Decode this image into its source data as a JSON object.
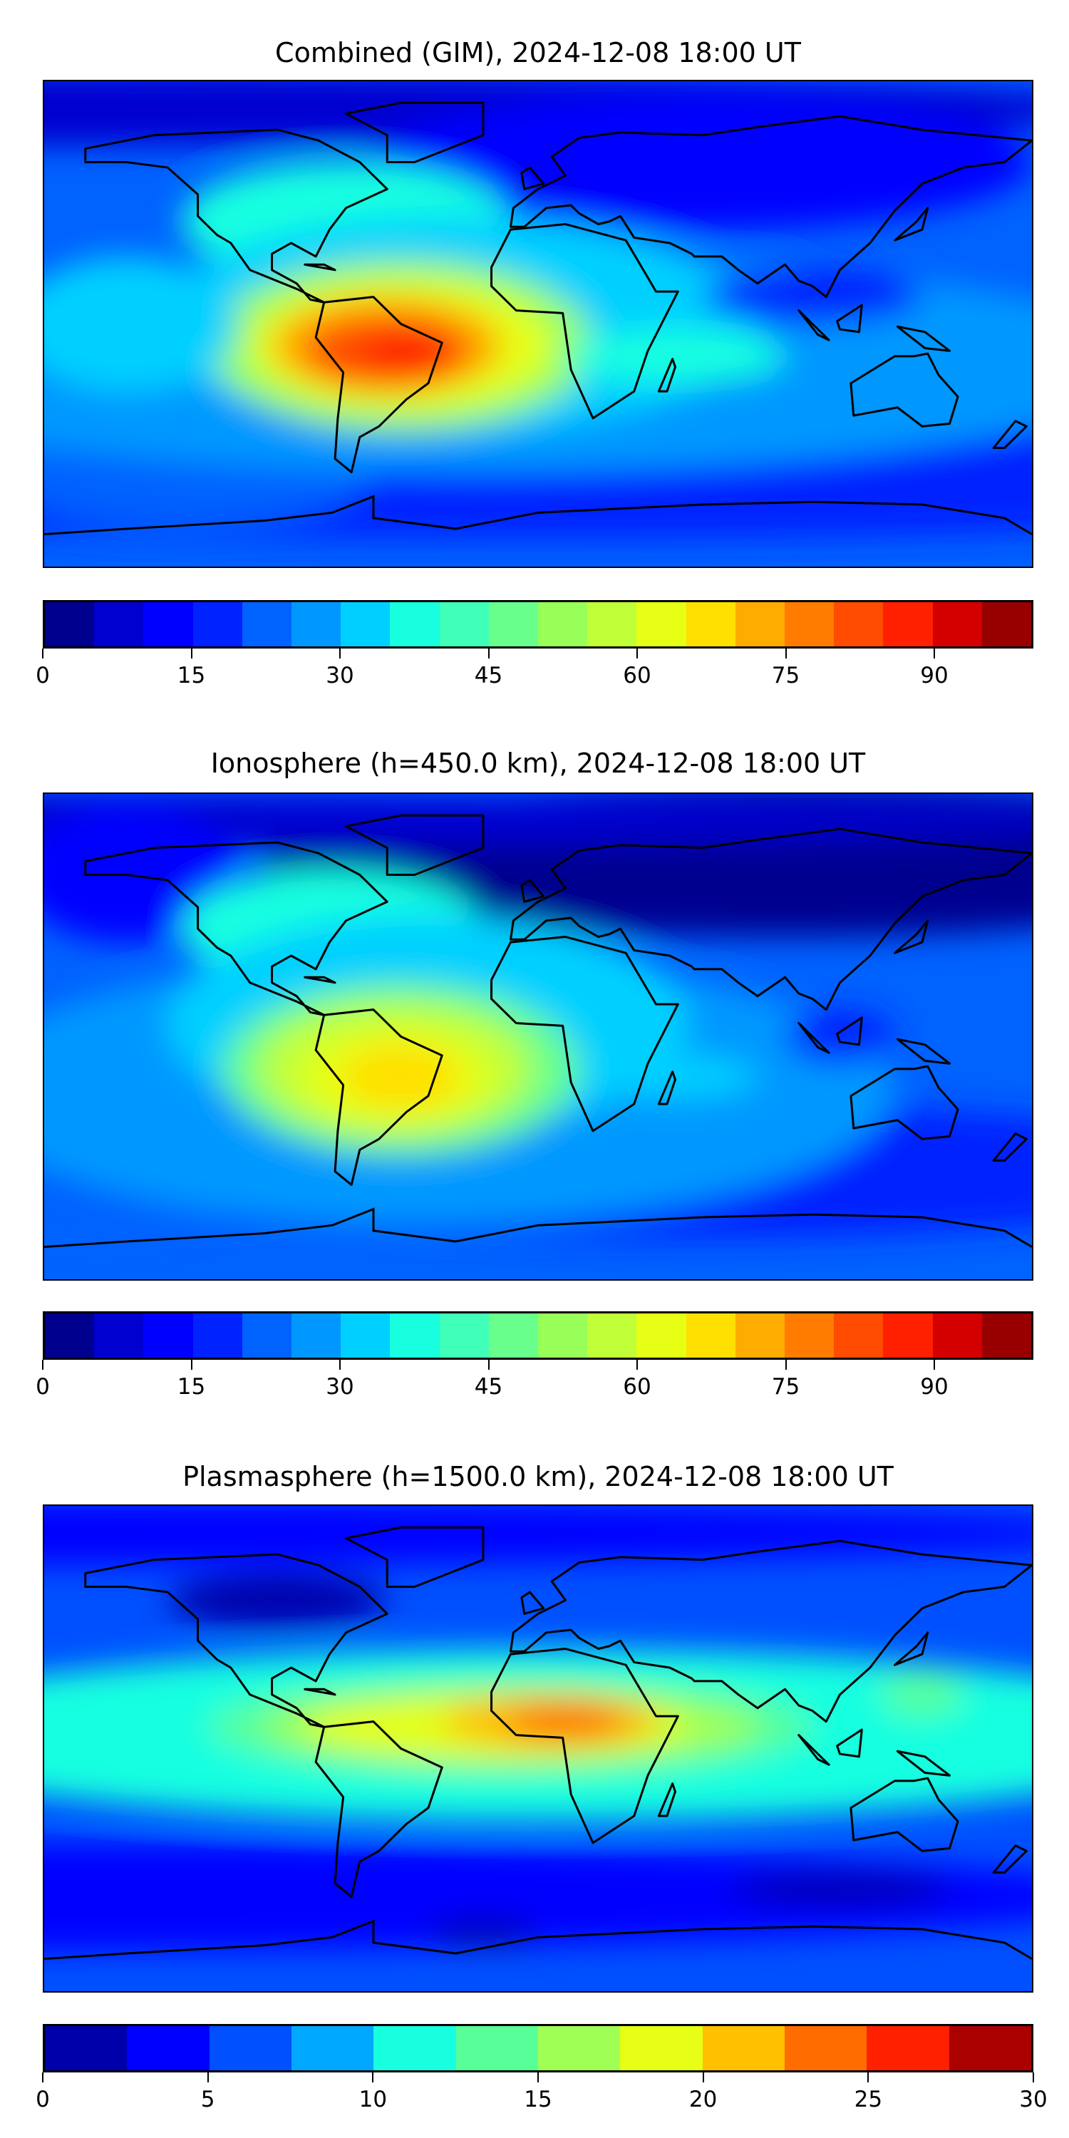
{
  "panels": [
    {
      "title": "Combined (GIM), 2024-12-08 18:00 UT",
      "colorbar": {
        "min": 0,
        "max": 100,
        "step": 5,
        "ticks": [
          "0",
          "15",
          "30",
          "45",
          "60",
          "75",
          "90"
        ],
        "tick_values": [
          0,
          15,
          30,
          45,
          60,
          75,
          90
        ],
        "colors": [
          "#00008f",
          "#0000d0",
          "#0000ff",
          "#0022ff",
          "#0062ff",
          "#0098ff",
          "#00d0ff",
          "#18ffe0",
          "#40ffb8",
          "#68ff8c",
          "#98ff58",
          "#c0ff38",
          "#e6ff14",
          "#ffe000",
          "#ffac00",
          "#ff7c00",
          "#ff4c00",
          "#ff2000",
          "#d40000",
          "#980000"
        ]
      },
      "field": "combined"
    },
    {
      "title": "Ionosphere  (h=450.0 km), 2024-12-08 18:00 UT",
      "colorbar": {
        "min": 0,
        "max": 100,
        "step": 5,
        "ticks": [
          "0",
          "15",
          "30",
          "45",
          "60",
          "75",
          "90"
        ],
        "tick_values": [
          0,
          15,
          30,
          45,
          60,
          75,
          90
        ],
        "colors": [
          "#00008f",
          "#0000d0",
          "#0000ff",
          "#0022ff",
          "#0062ff",
          "#0098ff",
          "#00d0ff",
          "#18ffe0",
          "#40ffb8",
          "#68ff8c",
          "#98ff58",
          "#c0ff38",
          "#e6ff14",
          "#ffe000",
          "#ffac00",
          "#ff7c00",
          "#ff4c00",
          "#ff2000",
          "#d40000",
          "#980000"
        ]
      },
      "field": "ionosphere"
    },
    {
      "title": "Plasmasphere (h=1500.0 km), 2024-12-08 18:00 UT",
      "colorbar": {
        "min": 0,
        "max": 30,
        "step": 2.5,
        "ticks": [
          "0",
          "5",
          "10",
          "15",
          "20",
          "25",
          "30"
        ],
        "tick_values": [
          0,
          5,
          10,
          15,
          20,
          25,
          30
        ],
        "colors": [
          "#0000aa",
          "#0000ff",
          "#0050ff",
          "#00a8ff",
          "#18ffe0",
          "#58ff98",
          "#a0ff54",
          "#e6ff14",
          "#ffc000",
          "#ff6c00",
          "#ff2000",
          "#aa0000"
        ]
      },
      "field": "plasmasphere"
    }
  ]
}
